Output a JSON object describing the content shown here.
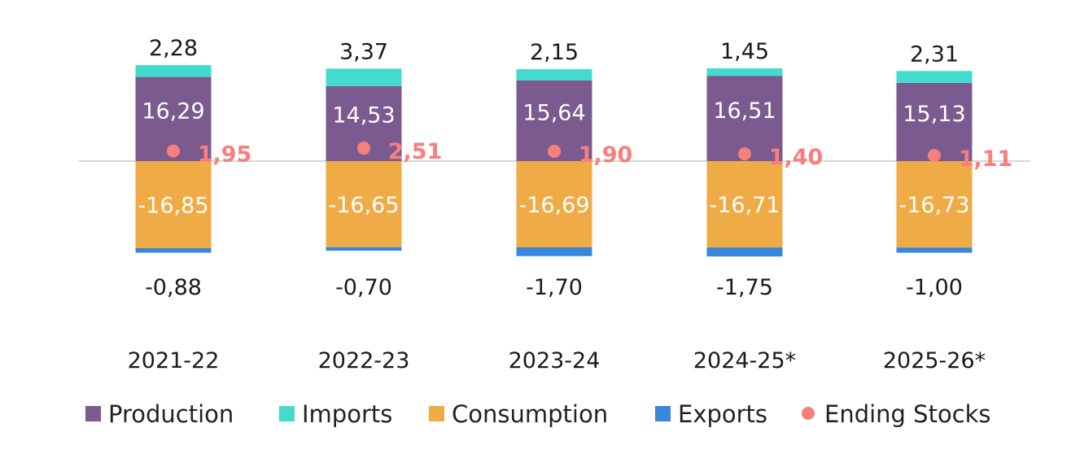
{
  "chart_data": {
    "type": "bar",
    "stacked": true,
    "categories": [
      "2021-22",
      "2022-23",
      "2023-24",
      "2024-25*",
      "2025-26*"
    ],
    "series": [
      {
        "name": "Production",
        "color": "#7b5a8f",
        "values": [
          16.29,
          14.53,
          15.64,
          16.51,
          15.13
        ],
        "labels": [
          "16,29",
          "14,53",
          "15,64",
          "16,51",
          "15,13"
        ]
      },
      {
        "name": "Imports",
        "color": "#43dbcf",
        "values": [
          2.28,
          3.37,
          2.15,
          1.45,
          2.31
        ],
        "labels": [
          "2,28",
          "3,37",
          "2,15",
          "1,45",
          "2,31"
        ]
      },
      {
        "name": "Consumption",
        "color": "#eeab46",
        "values": [
          -16.85,
          -16.65,
          -16.69,
          -16.71,
          -16.73
        ],
        "labels": [
          "-16,85",
          "-16,65",
          "-16,69",
          "-16,71",
          "-16,73"
        ]
      },
      {
        "name": "Exports",
        "color": "#3a86dc",
        "values": [
          -0.88,
          -0.7,
          -1.7,
          -1.75,
          -1.0
        ],
        "labels": [
          "-0,88",
          "-0,70",
          "-1,70",
          "-1,75",
          "-1,00"
        ]
      }
    ],
    "line_series": {
      "name": "Ending Stocks",
      "color": "#f77f7d",
      "marker": "dot",
      "values": [
        1.95,
        2.51,
        1.9,
        1.4,
        1.11
      ],
      "labels": [
        "1,95",
        "2,51",
        "1,90",
        "1,40",
        "1,11"
      ]
    },
    "legend": "bottom",
    "grid": false
  }
}
